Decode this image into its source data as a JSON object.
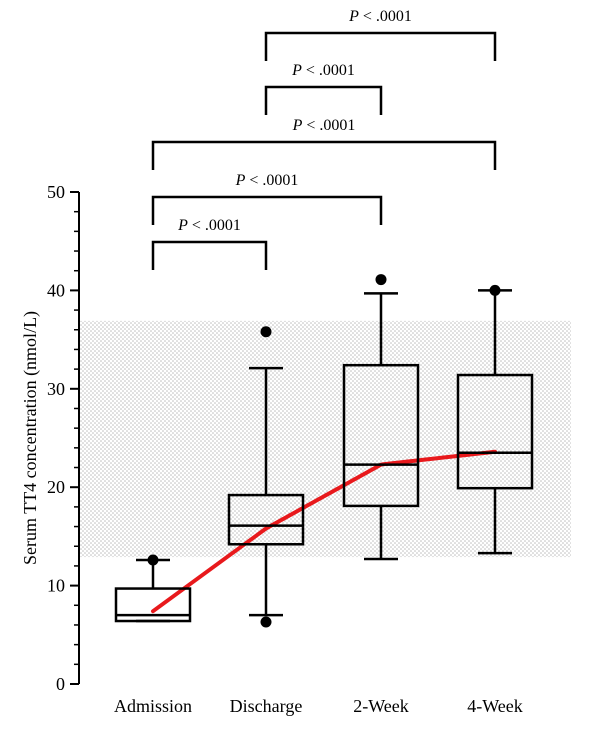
{
  "chart_data": {
    "type": "box",
    "ylabel": "Serum TT4 concentration (nmol/L)",
    "xlabel": "",
    "ylim": [
      0,
      50
    ],
    "yticks": [
      0,
      10,
      20,
      30,
      40,
      50
    ],
    "y_minor_step": 2,
    "categories": [
      "Admission",
      "Discharge",
      "2-Week",
      "4-Week"
    ],
    "boxes": [
      {
        "category": "Admission",
        "whisker_low": 6.4,
        "q1": 6.4,
        "median": 7.0,
        "q3": 9.7,
        "whisker_high": 12.6,
        "outliers": [
          12.6
        ]
      },
      {
        "category": "Discharge",
        "whisker_low": 7.0,
        "q1": 14.2,
        "median": 16.1,
        "q3": 19.2,
        "whisker_high": 32.1,
        "outliers": [
          35.8,
          6.3
        ]
      },
      {
        "category": "2-Week",
        "whisker_low": 12.7,
        "q1": 18.1,
        "median": 22.3,
        "q3": 32.4,
        "whisker_high": 39.7,
        "outliers": [
          41.1
        ]
      },
      {
        "category": "4-Week",
        "whisker_low": 13.3,
        "q1": 19.9,
        "median": 23.5,
        "q3": 31.4,
        "whisker_high": 40.0,
        "outliers": [
          40.0
        ]
      }
    ],
    "trend_line": {
      "color": "#e8191c",
      "values": [
        7.4,
        15.8,
        22.3,
        23.6
      ]
    },
    "reference_band": {
      "low": 12.9,
      "high": 36.9,
      "color": "#bdbdbd"
    },
    "comparisons": [
      {
        "from": "Admission",
        "to": "Discharge",
        "label_prefix": "P",
        "label_rest": " < .0001",
        "level": 1
      },
      {
        "from": "Admission",
        "to": "2-Week",
        "label_prefix": "P",
        "label_rest": " < .0001",
        "level": 2
      },
      {
        "from": "Admission",
        "to": "4-Week",
        "label_prefix": "P",
        "label_rest": " < .0001",
        "level": 3
      },
      {
        "from": "Discharge",
        "to": "2-Week",
        "label_prefix": "P",
        "label_rest": " < .0001",
        "level": 4
      },
      {
        "from": "Discharge",
        "to": "4-Week",
        "label_prefix": "P",
        "label_rest": " < .0001",
        "level": 5
      }
    ],
    "grid": false
  }
}
